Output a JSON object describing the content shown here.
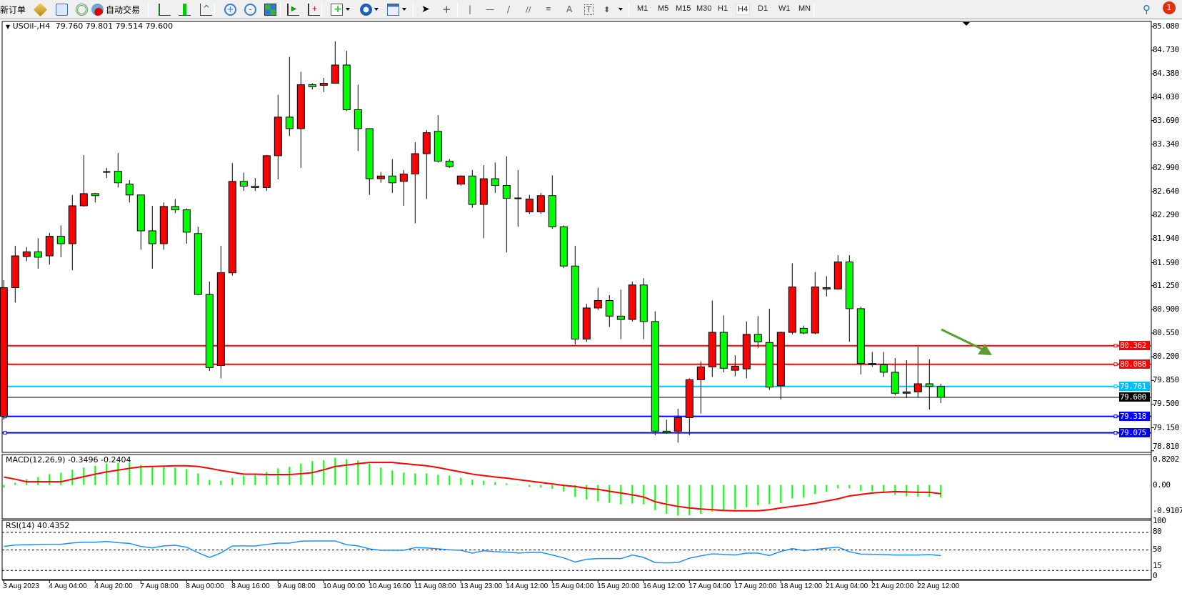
{
  "toolbar": {
    "new_order": "新订单",
    "auto_trading": "自动交易",
    "timeframes": [
      "M1",
      "M5",
      "M15",
      "M30",
      "H1",
      "H4",
      "D1",
      "W1",
      "MN"
    ],
    "active_timeframe": "H4",
    "notification_count": "1",
    "icons": [
      "market-watch-icon",
      "data-window-icon",
      "navigator-icon",
      "auto-trading-icon",
      "bar-chart-icon",
      "candlestick-icon",
      "line-chart-icon",
      "zoom-in-icon",
      "zoom-out-icon",
      "tile-windows-icon",
      "auto-scroll-icon",
      "chart-shift-icon",
      "indicators-icon",
      "periods-icon",
      "templates-icon",
      "cursor-icon",
      "crosshair-icon",
      "vertical-line-icon",
      "horizontal-line-icon",
      "trendline-icon",
      "equidistant-channel-icon",
      "fibonacci-icon",
      "text-icon",
      "text-label-icon",
      "arrows-icon",
      "search-icon",
      "notification-icon"
    ]
  },
  "chart": {
    "symbol": "USOil-,H4",
    "ohlc": "79.760 79.801 79.514 79.600",
    "price_axis": [
      "85.080",
      "84.730",
      "84.380",
      "84.030",
      "83.690",
      "83.340",
      "82.990",
      "82.640",
      "82.290",
      "81.940",
      "81.590",
      "81.250",
      "80.900",
      "80.550",
      "80.200",
      "79.850",
      "79.500",
      "79.150",
      "78.810"
    ],
    "hlines": [
      {
        "price": "80.362",
        "color": "#ff0000"
      },
      {
        "price": "80.088",
        "color": "#ff0000"
      },
      {
        "price": "79.761",
        "color": "#00bfff"
      },
      {
        "price": "79.600",
        "color": "#000000"
      },
      {
        "price": "79.318",
        "color": "#0000ff"
      },
      {
        "price": "79.075",
        "color": "#0000ff"
      }
    ],
    "time_axis": [
      "3 Aug 2023",
      "4 Aug 04:00",
      "4 Aug 20:00",
      "7 Aug 08:00",
      "8 Aug 00:00",
      "8 Aug 16:00",
      "9 Aug 08:00",
      "10 Aug 00:00",
      "10 Aug 16:00",
      "11 Aug 08:00",
      "13 Aug 23:00",
      "14 Aug 12:00",
      "15 Aug 04:00",
      "15 Aug 20:00",
      "16 Aug 12:00",
      "17 Aug 04:00",
      "17 Aug 20:00",
      "18 Aug 12:00",
      "21 Aug 04:00",
      "21 Aug 20:00",
      "22 Aug 12:00"
    ],
    "colors": {
      "bull": "#ff0000",
      "bear": "#00ff00",
      "arrow": "#5a9e32",
      "rsi": "#1e90ff",
      "macd_hist": "#00ff00",
      "macd_signal": "#ff0000"
    }
  },
  "macd": {
    "label": "MACD(12,26,9) -0.3496 -0.2404",
    "axis": [
      "0.8202",
      "0.00",
      "-0.9107"
    ]
  },
  "rsi": {
    "label": "RSI(14) 40.4352",
    "axis": [
      "100",
      "80",
      "50",
      "15",
      "0"
    ]
  },
  "chart_data": {
    "type": "candlestick",
    "ylim": [
      78.81,
      85.08
    ],
    "candles": [
      [
        79.32,
        81.33,
        79.27,
        81.22
      ],
      [
        81.22,
        81.84,
        81.0,
        81.69
      ],
      [
        81.68,
        81.82,
        81.61,
        81.75
      ],
      [
        81.75,
        81.95,
        81.5,
        81.67
      ],
      [
        81.69,
        82.03,
        81.56,
        81.98
      ],
      [
        81.98,
        82.14,
        81.67,
        81.87
      ],
      [
        81.87,
        82.59,
        81.48,
        82.43
      ],
      [
        82.43,
        83.18,
        82.42,
        82.61
      ],
      [
        82.61,
        82.62,
        82.48,
        82.58
      ],
      [
        82.92,
        82.99,
        82.84,
        82.93
      ],
      [
        82.94,
        83.21,
        82.7,
        82.77
      ],
      [
        82.75,
        82.81,
        82.48,
        82.59
      ],
      [
        82.59,
        82.59,
        81.78,
        82.06
      ],
      [
        82.06,
        82.43,
        81.5,
        81.87
      ],
      [
        81.87,
        82.48,
        81.78,
        82.42
      ],
      [
        82.42,
        82.53,
        82.32,
        82.37
      ],
      [
        82.37,
        82.39,
        81.87,
        82.04
      ],
      [
        82.02,
        82.12,
        81.11,
        81.12
      ],
      [
        81.12,
        81.31,
        79.99,
        80.04
      ],
      [
        80.07,
        81.84,
        79.88,
        81.44
      ],
      [
        81.44,
        83.06,
        81.4,
        82.79
      ],
      [
        82.79,
        82.92,
        82.65,
        82.72
      ],
      [
        82.72,
        82.84,
        82.65,
        82.7
      ],
      [
        82.7,
        83.18,
        82.65,
        83.17
      ],
      [
        83.17,
        84.07,
        82.82,
        83.74
      ],
      [
        83.74,
        84.63,
        83.46,
        83.57
      ],
      [
        83.57,
        84.41,
        82.99,
        84.22
      ],
      [
        84.22,
        84.24,
        84.15,
        84.19
      ],
      [
        84.21,
        84.32,
        84.11,
        84.24
      ],
      [
        84.24,
        84.86,
        84.24,
        84.51
      ],
      [
        84.51,
        84.72,
        83.83,
        83.85
      ],
      [
        83.85,
        84.22,
        83.24,
        83.57
      ],
      [
        83.57,
        83.57,
        82.59,
        82.83
      ],
      [
        82.83,
        82.93,
        82.77,
        82.87
      ],
      [
        82.87,
        83.12,
        82.62,
        82.77
      ],
      [
        82.79,
        82.96,
        82.43,
        82.9
      ],
      [
        82.9,
        83.37,
        82.17,
        83.2
      ],
      [
        83.2,
        83.55,
        82.53,
        83.51
      ],
      [
        83.53,
        83.77,
        83.07,
        83.09
      ],
      [
        83.09,
        83.12,
        82.99,
        83.01
      ],
      [
        82.75,
        82.88,
        82.73,
        82.87
      ],
      [
        82.87,
        82.96,
        82.4,
        82.45
      ],
      [
        82.45,
        83.03,
        81.95,
        82.83
      ],
      [
        82.83,
        83.07,
        82.62,
        82.73
      ],
      [
        82.73,
        83.16,
        81.74,
        82.54
      ],
      [
        82.54,
        82.96,
        82.12,
        82.53
      ],
      [
        82.34,
        82.59,
        82.31,
        82.53
      ],
      [
        82.34,
        82.62,
        82.31,
        82.58
      ],
      [
        82.58,
        82.88,
        82.09,
        82.12
      ],
      [
        82.12,
        82.14,
        81.51,
        81.54
      ],
      [
        81.54,
        81.84,
        80.38,
        80.46
      ],
      [
        80.46,
        80.98,
        80.42,
        80.92
      ],
      [
        80.92,
        81.22,
        80.89,
        81.03
      ],
      [
        81.03,
        81.11,
        80.64,
        80.8
      ],
      [
        80.8,
        81.19,
        80.46,
        80.75
      ],
      [
        80.75,
        81.31,
        80.72,
        81.26
      ],
      [
        81.26,
        81.36,
        80.46,
        80.72
      ],
      [
        80.72,
        80.87,
        79.04,
        79.1
      ],
      [
        79.1,
        79.27,
        79.06,
        79.08
      ],
      [
        79.1,
        79.43,
        78.93,
        79.3
      ],
      [
        79.3,
        79.88,
        79.04,
        79.86
      ],
      [
        79.86,
        80.13,
        79.36,
        80.05
      ],
      [
        80.05,
        81.03,
        79.9,
        80.56
      ],
      [
        80.56,
        80.81,
        79.97,
        80.03
      ],
      [
        80.0,
        80.22,
        79.91,
        80.06
      ],
      [
        80.02,
        80.72,
        79.88,
        80.53
      ],
      [
        80.53,
        80.8,
        80.33,
        80.42
      ],
      [
        80.41,
        80.91,
        79.71,
        79.75
      ],
      [
        79.77,
        80.57,
        79.57,
        80.56
      ],
      [
        80.56,
        81.58,
        80.53,
        81.23
      ],
      [
        80.62,
        80.66,
        80.53,
        80.55
      ],
      [
        80.55,
        81.45,
        80.53,
        81.23
      ],
      [
        81.2,
        81.39,
        81.09,
        81.22
      ],
      [
        81.2,
        81.7,
        81.19,
        81.6
      ],
      [
        81.6,
        81.7,
        80.42,
        80.91
      ],
      [
        80.91,
        80.94,
        79.94,
        80.1
      ],
      [
        80.08,
        80.27,
        80.05,
        80.1
      ],
      [
        80.08,
        80.27,
        79.9,
        79.97
      ],
      [
        79.97,
        80.18,
        79.63,
        79.66
      ],
      [
        79.66,
        80.15,
        79.59,
        79.68
      ],
      [
        79.68,
        80.35,
        79.6,
        79.8
      ],
      [
        79.8,
        80.16,
        79.42,
        79.76
      ],
      [
        79.76,
        79.801,
        79.514,
        79.6
      ]
    ],
    "macd_hist": [
      -0.07,
      0.06,
      0.16,
      0.22,
      0.3,
      0.34,
      0.42,
      0.48,
      0.53,
      0.59,
      0.61,
      0.61,
      0.55,
      0.51,
      0.5,
      0.48,
      0.44,
      0.32,
      0.14,
      0.12,
      0.2,
      0.26,
      0.29,
      0.36,
      0.46,
      0.5,
      0.59,
      0.66,
      0.69,
      0.75,
      0.71,
      0.67,
      0.59,
      0.48,
      0.4,
      0.34,
      0.32,
      0.32,
      0.28,
      0.26,
      0.2,
      0.15,
      0.12,
      0.08,
      0.04,
      0.01,
      -0.05,
      -0.07,
      -0.1,
      -0.18,
      -0.33,
      -0.4,
      -0.45,
      -0.49,
      -0.53,
      -0.51,
      -0.53,
      -0.69,
      -0.79,
      -0.84,
      -0.83,
      -0.79,
      -0.73,
      -0.68,
      -0.67,
      -0.61,
      -0.56,
      -0.53,
      -0.5,
      -0.37,
      -0.35,
      -0.25,
      -0.19,
      -0.09,
      -0.09,
      -0.16,
      -0.17,
      -0.18,
      -0.27,
      -0.31,
      -0.32,
      -0.32,
      -0.3496
    ],
    "macd_signal": [
      0.22,
      0.16,
      0.09,
      0.09,
      0.09,
      0.09,
      0.16,
      0.23,
      0.3,
      0.36,
      0.41,
      0.46,
      0.5,
      0.51,
      0.52,
      0.53,
      0.53,
      0.51,
      0.46,
      0.4,
      0.35,
      0.3,
      0.3,
      0.29,
      0.29,
      0.29,
      0.31,
      0.34,
      0.42,
      0.51,
      0.55,
      0.59,
      0.62,
      0.62,
      0.62,
      0.59,
      0.56,
      0.53,
      0.48,
      0.42,
      0.36,
      0.3,
      0.26,
      0.22,
      0.19,
      0.15,
      0.11,
      0.07,
      0.03,
      -0.01,
      -0.04,
      -0.09,
      -0.12,
      -0.17,
      -0.22,
      -0.27,
      -0.33,
      -0.46,
      -0.53,
      -0.59,
      -0.63,
      -0.66,
      -0.68,
      -0.7,
      -0.71,
      -0.71,
      -0.71,
      -0.68,
      -0.63,
      -0.59,
      -0.55,
      -0.5,
      -0.44,
      -0.38,
      -0.3,
      -0.26,
      -0.22,
      -0.2,
      -0.18,
      -0.19,
      -0.2,
      -0.2,
      -0.2404
    ],
    "macd_ylim": [
      -0.9107,
      0.8202
    ],
    "rsi": [
      56.0,
      58.5,
      59.0,
      59.5,
      59.7,
      59.7,
      62.0,
      63.3,
      63.3,
      64.6,
      62.5,
      61.3,
      56.0,
      53.6,
      57.0,
      58.0,
      54.8,
      45.4,
      37.3,
      45.0,
      56.8,
      57.0,
      56.8,
      59.5,
      61.7,
      61.7,
      65.0,
      65.4,
      65.4,
      65.4,
      59.0,
      57.0,
      51.8,
      49.5,
      49.5,
      49.5,
      54.0,
      53.5,
      52.0,
      50.3,
      49.5,
      44.6,
      48.7,
      47.0,
      46.3,
      44.8,
      45.5,
      46.0,
      41.4,
      36.5,
      29.5,
      34.1,
      35.3,
      35.3,
      35.3,
      41.4,
      37.3,
      28.5,
      28.0,
      28.5,
      36.0,
      40.0,
      43.4,
      42.5,
      41.5,
      44.6,
      44.6,
      40.5,
      47.5,
      52.4,
      49.0,
      51.0,
      53.0,
      54.9,
      47.0,
      43.0,
      42.6,
      42.2,
      41.4,
      41.4,
      41.4,
      42.2,
      40.4352
    ],
    "rsi_levels": [
      80,
      50,
      15
    ]
  }
}
